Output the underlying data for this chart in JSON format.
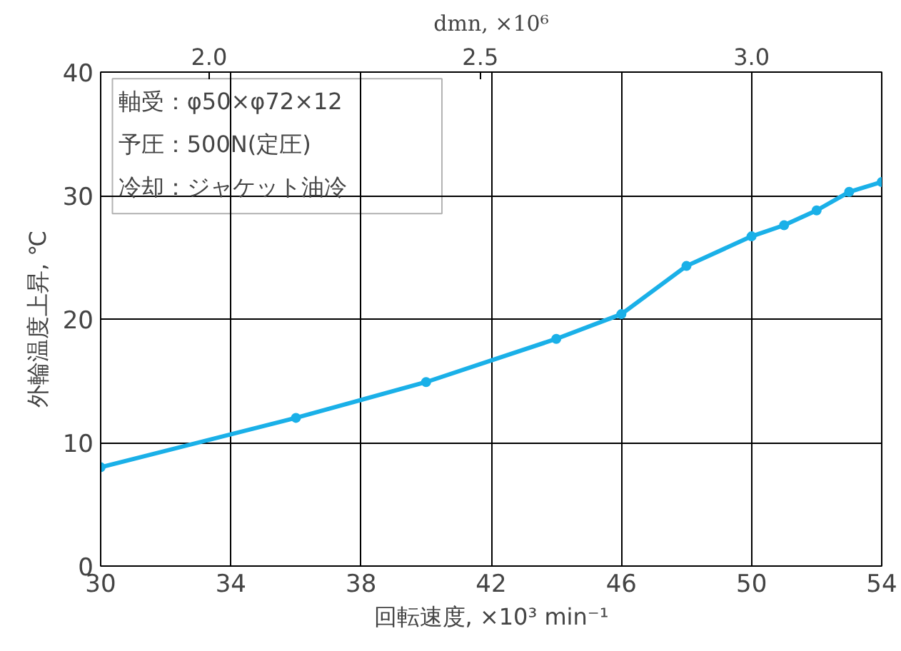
{
  "chart_data": {
    "type": "line",
    "xlabel": "回転速度, ×10³ min⁻¹",
    "ylabel": "外輪温度上昇, ℃",
    "x2label": "dmn, ×10⁶",
    "x": [
      30,
      36,
      40,
      44,
      46,
      48,
      50,
      51,
      52,
      53,
      54
    ],
    "series": [
      {
        "color": "#1ab0e8",
        "values": [
          8.0,
          12.0,
          14.9,
          18.4,
          20.4,
          24.3,
          26.7,
          27.6,
          28.8,
          30.3,
          31.1
        ]
      }
    ],
    "xlim": [
      30,
      54
    ],
    "xticks": [
      30,
      34,
      38,
      42,
      46,
      50,
      54
    ],
    "ylim": [
      0,
      40
    ],
    "yticks": [
      0,
      10,
      20,
      30,
      40
    ],
    "x2lim": [
      1.8,
      3.24
    ],
    "x2ticks": [
      {
        "value": 2.0,
        "label": "2.0"
      },
      2.5,
      {
        "value": 3.0,
        "label": "3.0"
      }
    ],
    "marker": "circle",
    "line_style": "solid",
    "grid": true,
    "annotations": [
      "軸受：φ50×φ72×12",
      "予圧：500N(定圧)",
      "冷却：ジャケット油冷"
    ]
  }
}
